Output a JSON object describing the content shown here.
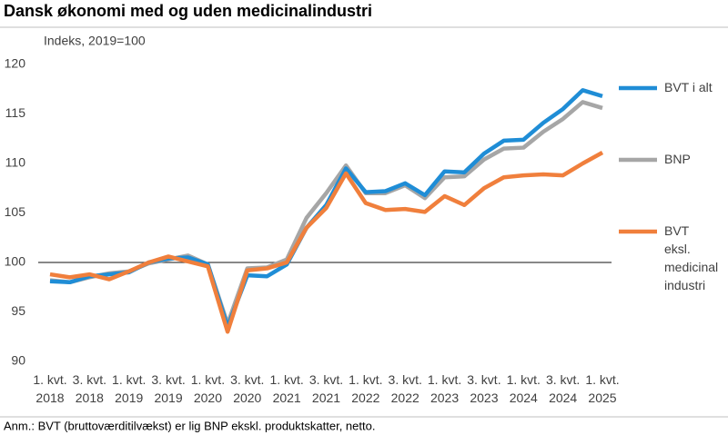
{
  "chart_data": {
    "type": "line",
    "title": "Dansk økonomi med og uden medicinalindustri",
    "y_label": "Indeks, 2019=100",
    "note": "Anm.: BVT (bruttoværditilvækst) er lig BNP ekskl. produktskatter, netto.",
    "categories": [
      "1. kvt.\n2018",
      null,
      "3. kvt.\n2018",
      null,
      "1. kvt.\n2019",
      null,
      "3. kvt.\n2019",
      null,
      "1. kvt.\n2020",
      null,
      "3. kvt.\n2020",
      null,
      "1. kvt.\n2021",
      null,
      "3. kvt.\n2021",
      null,
      "1. kvt.\n2022",
      null,
      "3. kvt.\n2022",
      null,
      "1. kvt.\n2023",
      null,
      "3. kvt.\n2023",
      null,
      "1. kvt.\n2024",
      null,
      "3. kvt.\n2024",
      null,
      "1. kvt.\n2025"
    ],
    "series": [
      {
        "name": "BVT i alt",
        "color": "#1f8dd6",
        "values": [
          98.1,
          98.0,
          98.6,
          98.8,
          99.0,
          100.0,
          100.4,
          100.5,
          99.8,
          93.5,
          98.7,
          98.6,
          99.8,
          103.5,
          105.8,
          109.5,
          107.1,
          107.2,
          108.0,
          106.8,
          109.2,
          109.1,
          111.0,
          112.3,
          112.4,
          114.1,
          115.5,
          117.4,
          116.8
        ]
      },
      {
        "name": "BNP",
        "color": "#a6a6a6",
        "values": [
          98.2,
          98.0,
          98.5,
          98.9,
          99.1,
          99.9,
          100.3,
          100.7,
          99.8,
          93.8,
          99.4,
          99.5,
          100.3,
          104.5,
          107.0,
          109.8,
          107.0,
          107.0,
          107.8,
          106.5,
          108.6,
          108.7,
          110.4,
          111.5,
          111.6,
          113.2,
          114.5,
          116.2,
          115.6
        ]
      },
      {
        "name": "BVT eksl. medicinal industri",
        "color": "#f07f3c",
        "values": [
          98.8,
          98.5,
          98.8,
          98.3,
          99.1,
          100.0,
          100.6,
          100.1,
          99.6,
          93.0,
          99.2,
          99.4,
          100.0,
          103.5,
          105.5,
          109.0,
          106.0,
          105.3,
          105.4,
          105.1,
          106.7,
          105.8,
          107.5,
          108.6,
          108.8,
          108.9,
          108.8,
          110.0,
          111.1
        ]
      }
    ],
    "ylim": [
      90,
      120
    ],
    "yticks": [
      90,
      95,
      100,
      105,
      110,
      115,
      120
    ],
    "reference_line": 100
  }
}
